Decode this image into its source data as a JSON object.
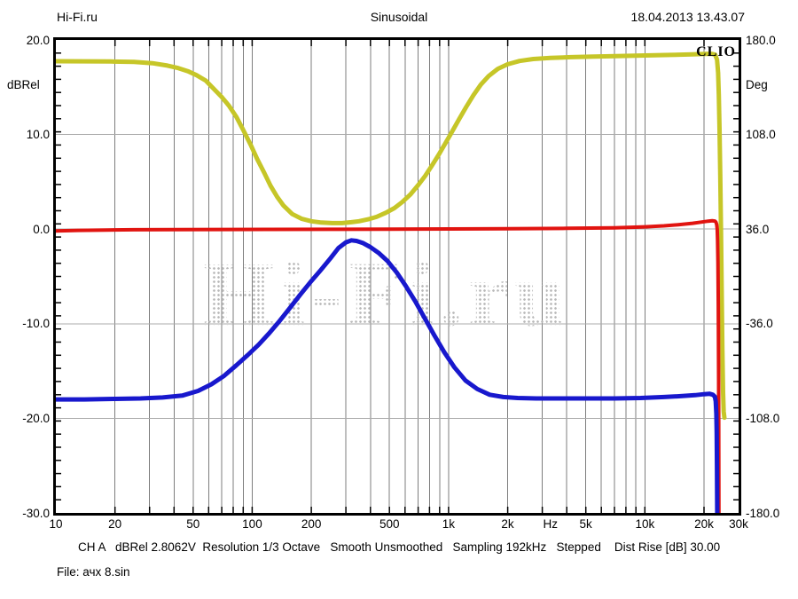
{
  "header": {
    "left": "Hi-Fi.ru",
    "center": "Sinusoidal",
    "right": "18.04.2013 13.43.07"
  },
  "plot": {
    "brand_label": "CLIO",
    "watermark_text": "Hi-Fi.ru"
  },
  "footer": {
    "status_line": "CH A   dBRel 2.8062V  Resolution 1/3 Octave   Smooth Unsmoothed   Sampling 192kHz   Stepped    Dist Rise [dB] 30.00",
    "file_line": "File: ачх 8.sin"
  },
  "colors": {
    "phase_curve": "#c6c628",
    "red_curve": "#e11410",
    "blue_curve": "#1818cd",
    "grid_vertical": "#7d7d7d",
    "grid_horizontal": "#ababab",
    "frame": "#000000",
    "watermark": "#b7b7b7"
  },
  "chart_data": {
    "type": "line",
    "title": "Sinusoidal",
    "x_axis": {
      "scale": "log",
      "unit": "Hz",
      "min": 10,
      "max": 30000,
      "ticks": [
        {
          "f": 10,
          "label": "10"
        },
        {
          "f": 20,
          "label": "20"
        },
        {
          "f": 50,
          "label": "50"
        },
        {
          "f": 100,
          "label": "100"
        },
        {
          "f": 200,
          "label": "200"
        },
        {
          "f": 500,
          "label": "500"
        },
        {
          "f": 1000,
          "label": "1k"
        },
        {
          "f": 2000,
          "label": "2k"
        },
        {
          "f": 5000,
          "label": "5k"
        },
        {
          "f": 10000,
          "label": "10k"
        },
        {
          "f": 20000,
          "label": "20k"
        },
        {
          "f": 30000,
          "label": "30k"
        }
      ],
      "unit_label": {
        "f": 3300,
        "label": "Hz"
      }
    },
    "y_left": {
      "label": "dBRel",
      "min": -30,
      "max": 20,
      "ticks": [
        {
          "v": 20,
          "label": "20.0"
        },
        {
          "v": 10,
          "label": "10.0"
        },
        {
          "v": 0,
          "label": "0.0"
        },
        {
          "v": -10,
          "label": "-10.0"
        },
        {
          "v": -20,
          "label": "-20.0"
        },
        {
          "v": -30,
          "label": "-30.0"
        }
      ]
    },
    "y_right": {
      "label": "Deg",
      "min": -180,
      "max": 180,
      "ticks": [
        {
          "v": 180,
          "label": "180.0"
        },
        {
          "v": 108,
          "label": "108.0"
        },
        {
          "v": 36,
          "label": "36.0"
        },
        {
          "v": -36,
          "label": "-36.0"
        },
        {
          "v": -108,
          "label": "-108.0"
        },
        {
          "v": -180,
          "label": "-180.0"
        }
      ]
    },
    "grid": {
      "horizontal_left_values": [
        10,
        0,
        -10,
        -20
      ],
      "vertical_log_decades": true
    },
    "series": [
      {
        "name": "phase-deg",
        "axis": "right",
        "color": "#c6c628",
        "width": 5,
        "points": [
          [
            10,
            163.8
          ],
          [
            14,
            163.7
          ],
          [
            19,
            163.6
          ],
          [
            25,
            163.3
          ],
          [
            31,
            162.3
          ],
          [
            37,
            160.5
          ],
          [
            42,
            158.6
          ],
          [
            47,
            156.2
          ],
          [
            52,
            153.2
          ],
          [
            58,
            149.0
          ],
          [
            63,
            143.5
          ],
          [
            70,
            136.5
          ],
          [
            76,
            130.0
          ],
          [
            83,
            121.5
          ],
          [
            90,
            111.5
          ],
          [
            98,
            100.5
          ],
          [
            106,
            89.3
          ],
          [
            115,
            79.0
          ],
          [
            124,
            69.0
          ],
          [
            134,
            60.5
          ],
          [
            144,
            54.1
          ],
          [
            160,
            47.5
          ],
          [
            178,
            44.0
          ],
          [
            200,
            42.0
          ],
          [
            225,
            41.0
          ],
          [
            255,
            40.6
          ],
          [
            287,
            40.6
          ],
          [
            320,
            41.3
          ],
          [
            350,
            42.0
          ],
          [
            390,
            43.5
          ],
          [
            430,
            45.3
          ],
          [
            480,
            48.5
          ],
          [
            530,
            52.0
          ],
          [
            580,
            56.5
          ],
          [
            640,
            62.5
          ],
          [
            700,
            69.5
          ],
          [
            760,
            76.5
          ],
          [
            820,
            84.0
          ],
          [
            890,
            92.5
          ],
          [
            960,
            101.0
          ],
          [
            1040,
            110.0
          ],
          [
            1130,
            119.5
          ],
          [
            1230,
            129.0
          ],
          [
            1340,
            138.0
          ],
          [
            1460,
            146.0
          ],
          [
            1600,
            152.5
          ],
          [
            1780,
            158.0
          ],
          [
            2000,
            161.5
          ],
          [
            2300,
            164.0
          ],
          [
            2700,
            165.5
          ],
          [
            3300,
            166.3
          ],
          [
            4200,
            166.9
          ],
          [
            5500,
            167.3
          ],
          [
            7500,
            167.8
          ],
          [
            10000,
            168.2
          ],
          [
            13500,
            168.6
          ],
          [
            17500,
            169.0
          ],
          [
            20500,
            169.3
          ],
          [
            22000,
            169.3
          ],
          [
            22800,
            168.8
          ],
          [
            23300,
            165.0
          ],
          [
            23600,
            155.0
          ],
          [
            23800,
            138.0
          ],
          [
            24000,
            112.0
          ],
          [
            24200,
            78.0
          ],
          [
            24400,
            38.0
          ],
          [
            24600,
            -8.0
          ],
          [
            24800,
            -55.0
          ],
          [
            25000,
            -88.0
          ],
          [
            25200,
            -103.0
          ],
          [
            25400,
            -107.5
          ]
        ]
      },
      {
        "name": "response-red-dB",
        "axis": "left",
        "color": "#e11410",
        "width": 4,
        "points": [
          [
            10,
            -0.2
          ],
          [
            13,
            -0.13
          ],
          [
            18,
            -0.09
          ],
          [
            25,
            -0.07
          ],
          [
            40,
            -0.05
          ],
          [
            70,
            -0.04
          ],
          [
            120,
            -0.03
          ],
          [
            250,
            -0.02
          ],
          [
            500,
            0.0
          ],
          [
            1000,
            0.02
          ],
          [
            2000,
            0.04
          ],
          [
            4000,
            0.08
          ],
          [
            7000,
            0.14
          ],
          [
            10000,
            0.24
          ],
          [
            12500,
            0.35
          ],
          [
            15000,
            0.48
          ],
          [
            17500,
            0.62
          ],
          [
            19500,
            0.75
          ],
          [
            21000,
            0.84
          ],
          [
            22000,
            0.88
          ],
          [
            22700,
            0.85
          ],
          [
            23000,
            0.75
          ],
          [
            23200,
            0.5
          ],
          [
            23350,
            0.0
          ],
          [
            23450,
            -1.2
          ],
          [
            23550,
            -3.5
          ],
          [
            23650,
            -8.0
          ],
          [
            23750,
            -16.0
          ],
          [
            23820,
            -30.0
          ]
        ]
      },
      {
        "name": "response-blue-dB",
        "axis": "left",
        "color": "#1818cd",
        "width": 5,
        "points": [
          [
            10,
            -18.0
          ],
          [
            14,
            -18.0
          ],
          [
            20,
            -17.95
          ],
          [
            27,
            -17.9
          ],
          [
            35,
            -17.8
          ],
          [
            44,
            -17.6
          ],
          [
            53,
            -17.1
          ],
          [
            62,
            -16.4
          ],
          [
            72,
            -15.5
          ],
          [
            83,
            -14.4
          ],
          [
            95,
            -13.3
          ],
          [
            108,
            -12.2
          ],
          [
            122,
            -11.0
          ],
          [
            138,
            -9.7
          ],
          [
            156,
            -8.3
          ],
          [
            176,
            -6.9
          ],
          [
            198,
            -5.6
          ],
          [
            222,
            -4.4
          ],
          [
            250,
            -3.1
          ],
          [
            275,
            -2.0
          ],
          [
            300,
            -1.4
          ],
          [
            320,
            -1.18
          ],
          [
            340,
            -1.25
          ],
          [
            365,
            -1.45
          ],
          [
            400,
            -1.9
          ],
          [
            440,
            -2.5
          ],
          [
            490,
            -3.4
          ],
          [
            545,
            -4.6
          ],
          [
            605,
            -6.0
          ],
          [
            675,
            -7.6
          ],
          [
            755,
            -9.4
          ],
          [
            845,
            -11.2
          ],
          [
            950,
            -13.0
          ],
          [
            1070,
            -14.6
          ],
          [
            1220,
            -16.0
          ],
          [
            1400,
            -16.9
          ],
          [
            1620,
            -17.5
          ],
          [
            1900,
            -17.75
          ],
          [
            2250,
            -17.85
          ],
          [
            2800,
            -17.9
          ],
          [
            3600,
            -17.9
          ],
          [
            5000,
            -17.9
          ],
          [
            7000,
            -17.9
          ],
          [
            9500,
            -17.85
          ],
          [
            12500,
            -17.75
          ],
          [
            15500,
            -17.65
          ],
          [
            18000,
            -17.55
          ],
          [
            20000,
            -17.45
          ],
          [
            21300,
            -17.4
          ],
          [
            22200,
            -17.5
          ],
          [
            22700,
            -17.7
          ],
          [
            22950,
            -18.2
          ],
          [
            23100,
            -19.5
          ],
          [
            23200,
            -21.5
          ],
          [
            23280,
            -25.0
          ],
          [
            23350,
            -30.0
          ]
        ]
      }
    ],
    "legend": null
  }
}
